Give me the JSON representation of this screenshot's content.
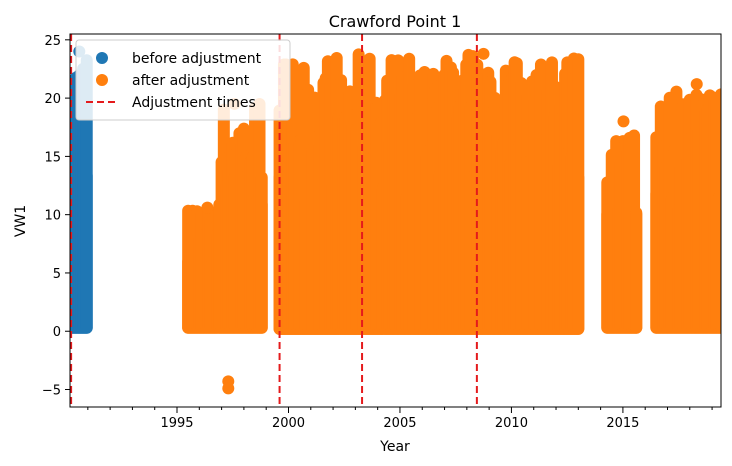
{
  "chart_data": {
    "type": "scatter",
    "title": "Crawford Point 1",
    "xlabel": "Year",
    "ylabel": "VW1",
    "xlim": [
      1990.2,
      2019.4
    ],
    "ylim": [
      -6.5,
      25.5
    ],
    "x_ticks": [
      1995,
      2000,
      2005,
      2010,
      2015
    ],
    "x_tick_labels": [
      "1995",
      "2000",
      "2005",
      "2010",
      "2015"
    ],
    "y_ticks": [
      -5,
      0,
      5,
      10,
      15,
      20,
      25
    ],
    "y_tick_labels": [
      "−5",
      "0",
      "5",
      "10",
      "15",
      "20",
      "25"
    ],
    "grid": false,
    "legend_position": "top-left",
    "colors": {
      "before": "#1f77b4",
      "after": "#ff7f0e",
      "adjustment": "#e41a1c"
    },
    "legend": [
      {
        "label": "before adjustment",
        "kind": "marker",
        "color_key": "before"
      },
      {
        "label": "after adjustment",
        "kind": "marker",
        "color_key": "after"
      },
      {
        "label": "Adjustment times",
        "kind": "dashed-line",
        "color_key": "adjustment"
      }
    ],
    "series": [
      {
        "name": "before adjustment",
        "color_key": "before",
        "segments": [
          {
            "x_start": 1990.3,
            "x_end": 1990.95,
            "y_min": 0.3,
            "y_max": 24.0
          }
        ],
        "outliers": []
      },
      {
        "name": "after adjustment",
        "color_key": "after",
        "segments": [
          {
            "x_start": 1995.5,
            "x_end": 1996.8,
            "y_min": 0.3,
            "y_max": 10.6
          },
          {
            "x_start": 1996.9,
            "x_end": 1998.8,
            "y_min": 0.3,
            "y_max": 19.5
          },
          {
            "x_start": 1999.6,
            "x_end": 2013.0,
            "y_min": 0.2,
            "y_max": 23.8
          },
          {
            "x_start": 2014.3,
            "x_end": 2015.6,
            "y_min": 0.3,
            "y_max": 18.0
          },
          {
            "x_start": 2016.5,
            "x_end": 2019.4,
            "y_min": 0.3,
            "y_max": 21.2
          }
        ],
        "outliers": [
          {
            "x": 1997.3,
            "y": -4.3
          },
          {
            "x": 1997.3,
            "y": -4.9
          }
        ]
      }
    ],
    "adjustment_times": [
      1990.25,
      1999.6,
      2003.3,
      2008.45
    ]
  }
}
